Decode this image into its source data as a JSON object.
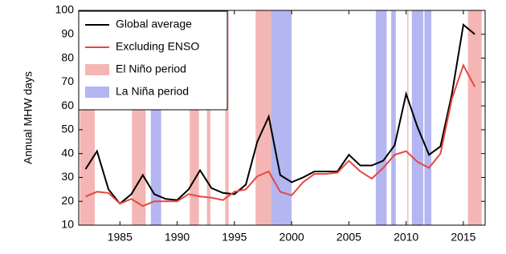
{
  "chart_data": {
    "type": "line",
    "ylabel": "Annual MHW days",
    "x": [
      1982,
      1983,
      1984,
      1985,
      1986,
      1987,
      1988,
      1989,
      1990,
      1991,
      1992,
      1993,
      1994,
      1995,
      1996,
      1997,
      1998,
      1999,
      2000,
      2001,
      2002,
      2003,
      2004,
      2005,
      2006,
      2007,
      2008,
      2009,
      2010,
      2011,
      2012,
      2013,
      2014,
      2015,
      2016
    ],
    "series": [
      {
        "name": "Global average",
        "color": "#000000",
        "values": [
          33.5,
          41,
          25,
          19,
          23,
          31,
          23,
          21,
          20.5,
          25,
          33,
          25.5,
          23.5,
          23,
          27,
          45,
          55.5,
          31,
          28,
          30,
          32.5,
          32.5,
          32.5,
          39.5,
          35,
          35,
          37,
          43.5,
          65,
          51,
          39.5,
          43,
          65,
          94,
          90
        ]
      },
      {
        "name": "Excluding ENSO",
        "color": "#e8463f",
        "values": [
          22,
          24,
          23.5,
          19,
          21,
          18,
          20,
          20,
          20,
          23,
          22,
          21.5,
          20.5,
          24,
          25,
          30.5,
          32.5,
          24,
          22.5,
          28,
          31.5,
          31.5,
          32,
          37,
          32.5,
          29.5,
          34,
          39.5,
          41,
          36.5,
          34,
          40,
          63,
          77,
          68
        ]
      }
    ],
    "bands": [
      {
        "name": "El Niño period",
        "color": "#f4b6b4",
        "ranges": [
          [
            1981.5,
            1982.8
          ],
          [
            1986.05,
            1987.25
          ],
          [
            1991.1,
            1991.9
          ],
          [
            1992.6,
            1992.9
          ],
          [
            1994.2,
            1994.5
          ],
          [
            1996.85,
            1998.2
          ],
          [
            2010.1,
            2010.2
          ],
          [
            2015.4,
            2016.6
          ]
        ]
      },
      {
        "name": "La Niña period",
        "color": "#b3b6f0",
        "ranges": [
          [
            1987.7,
            1988.6
          ],
          [
            1998.2,
            2000
          ],
          [
            2007.35,
            2008.3
          ],
          [
            2008.7,
            2009.1
          ],
          [
            2010.5,
            2011.5
          ],
          [
            2011.6,
            2012.2
          ]
        ]
      }
    ],
    "xlim": [
      1981.4,
      2016.9
    ],
    "xticks": [
      1985,
      1990,
      1995,
      2000,
      2005,
      2010,
      2015
    ],
    "ylim": [
      10,
      100
    ],
    "yticks": [
      10,
      20,
      30,
      40,
      50,
      60,
      70,
      80,
      90,
      100
    ],
    "legend": "upper left"
  }
}
